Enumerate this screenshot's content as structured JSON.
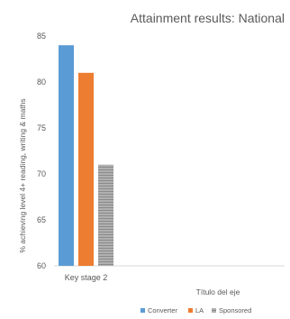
{
  "chart_data": {
    "type": "bar",
    "title": "Attainment results: National",
    "ylabel": "% achieving level 4+ reading, writing & maths",
    "xlabel": "Título del eje",
    "ylim": [
      60,
      85
    ],
    "yticks": [
      60,
      65,
      70,
      75,
      80,
      85
    ],
    "categories": [
      "Key stage 2"
    ],
    "grid": false,
    "legend_position": "bottom-right",
    "series": [
      {
        "name": "Converter",
        "values": [
          84
        ],
        "color": "#5b9bd5",
        "pattern": "solid"
      },
      {
        "name": "LA",
        "values": [
          81
        ],
        "color": "#ed7d31",
        "pattern": "solid"
      },
      {
        "name": "Sponsored",
        "values": [
          71
        ],
        "color": "#a5a5a5",
        "pattern": "striped"
      }
    ]
  }
}
